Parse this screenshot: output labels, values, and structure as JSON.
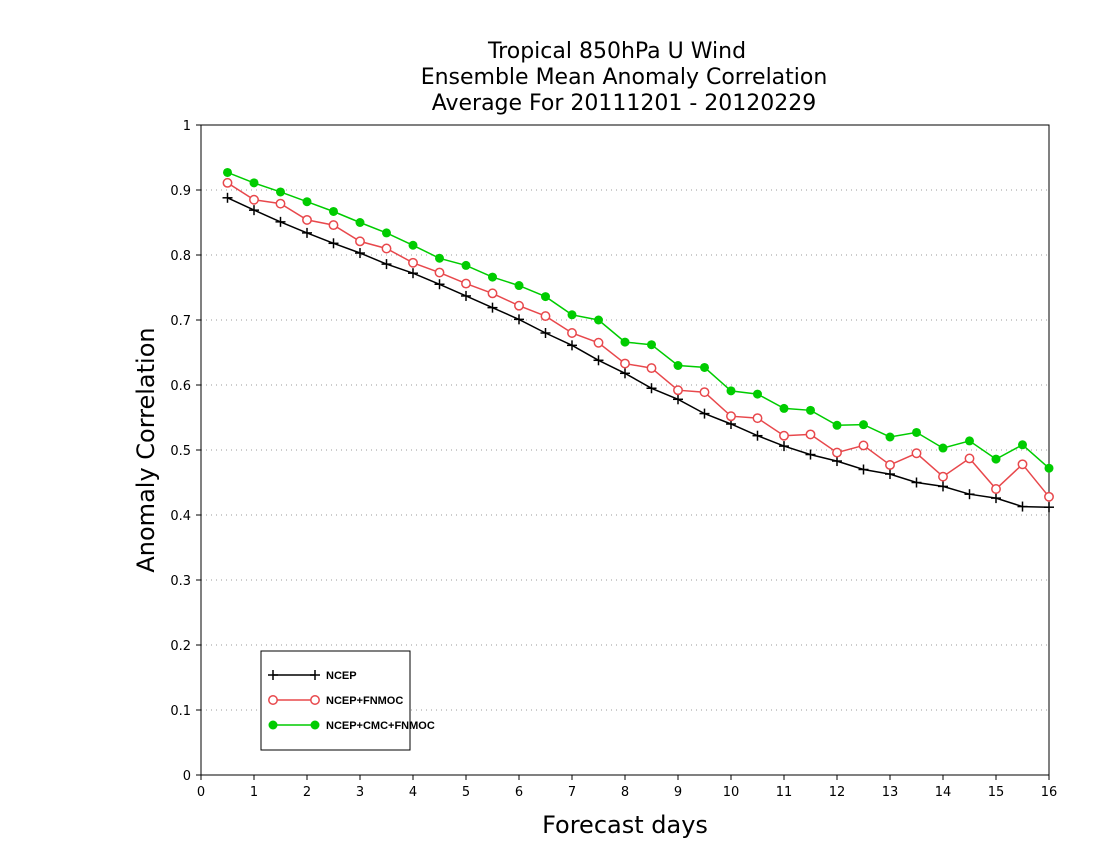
{
  "chart_data": {
    "type": "line",
    "title": [
      "Tropical 850hPa U Wind",
      "Ensemble Mean Anomaly Correlation",
      "Average For 20111201 - 20120229"
    ],
    "xlabel": "Forecast days",
    "ylabel": "Anomaly Correlation",
    "xlim": [
      0,
      16
    ],
    "ylim": [
      0,
      1
    ],
    "xticks": [
      0,
      1,
      2,
      3,
      4,
      5,
      6,
      7,
      8,
      9,
      10,
      11,
      12,
      13,
      14,
      15,
      16
    ],
    "xtick_labels": [
      "0",
      "1",
      "2",
      "3",
      "4",
      "5",
      "6",
      "7",
      "8",
      "9",
      "10",
      "11",
      "12",
      "13",
      "14",
      "15",
      "16"
    ],
    "yticks": [
      0,
      0.1,
      0.2,
      0.3,
      0.4,
      0.5,
      0.6,
      0.7,
      0.8,
      0.9,
      1
    ],
    "ytick_labels": [
      "0",
      "0.1",
      "0.2",
      "0.3",
      "0.4",
      "0.5",
      "0.6",
      "0.7",
      "0.8",
      "0.9",
      "1"
    ],
    "grid": "horizontal dotted",
    "legend_position": "lower-left",
    "x": [
      0.5,
      1,
      1.5,
      2,
      2.5,
      3,
      3.5,
      4,
      4.5,
      5,
      5.5,
      6,
      6.5,
      7,
      7.5,
      8,
      8.5,
      9,
      9.5,
      10,
      10.5,
      11,
      11.5,
      12,
      12.5,
      13,
      13.5,
      14,
      14.5,
      15,
      15.5,
      16
    ],
    "series": [
      {
        "name": "NCEP",
        "color": "#000000",
        "marker": "plus",
        "values": [
          0.888,
          0.869,
          0.851,
          0.834,
          0.818,
          0.803,
          0.786,
          0.772,
          0.755,
          0.737,
          0.719,
          0.701,
          0.68,
          0.661,
          0.638,
          0.618,
          0.595,
          0.578,
          0.556,
          0.54,
          0.522,
          0.506,
          0.493,
          0.483,
          0.47,
          0.463,
          0.45,
          0.444,
          0.432,
          0.426,
          0.413,
          0.412
        ]
      },
      {
        "name": "NCEP+FNMOC",
        "color": "#e8484c",
        "marker": "open-circle",
        "values": [
          0.911,
          0.885,
          0.879,
          0.854,
          0.846,
          0.821,
          0.81,
          0.788,
          0.773,
          0.756,
          0.741,
          0.722,
          0.706,
          0.68,
          0.665,
          0.633,
          0.626,
          0.592,
          0.589,
          0.552,
          0.549,
          0.522,
          0.524,
          0.496,
          0.507,
          0.477,
          0.495,
          0.459,
          0.487,
          0.44,
          0.478,
          0.428
        ]
      },
      {
        "name": "NCEP+CMC+FNMOC",
        "color": "#00cc00",
        "marker": "filled-circle",
        "values": [
          0.927,
          0.911,
          0.897,
          0.882,
          0.867,
          0.85,
          0.834,
          0.815,
          0.795,
          0.784,
          0.766,
          0.753,
          0.736,
          0.708,
          0.7,
          0.666,
          0.662,
          0.63,
          0.627,
          0.591,
          0.586,
          0.564,
          0.561,
          0.538,
          0.539,
          0.52,
          0.527,
          0.503,
          0.514,
          0.486,
          0.508,
          0.472
        ]
      }
    ]
  }
}
